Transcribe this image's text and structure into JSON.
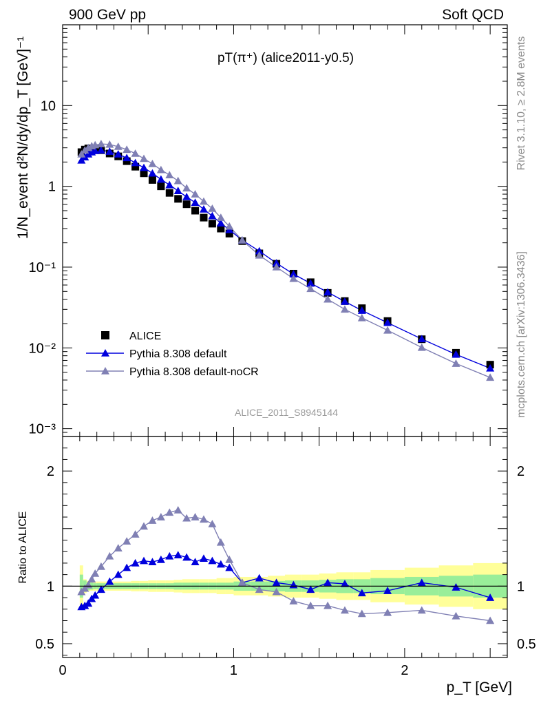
{
  "header": {
    "left": "900 GeV pp",
    "right": "Soft QCD",
    "side_top": "Rivet 3.1.10, ≥ 2.8M events",
    "side_bottom": "mcplots.cern.ch [arXiv:1306.3436]"
  },
  "chart_data": [
    {
      "type": "scatter",
      "title": "pT(π⁺) (alice2011-y0.5)",
      "watermark": "ALICE_2011_S8945144",
      "ylabel": "1/N_event d²N/dy/dp_T [GeV]⁻¹",
      "yscale": "log",
      "ylim": [
        0.0008,
        100
      ],
      "xlim": [
        0,
        2.6
      ],
      "grid": false,
      "legend": "lower-left",
      "yticks": [
        {
          "v": 0.001,
          "label": "10⁻³"
        },
        {
          "v": 0.01,
          "label": "10⁻²"
        },
        {
          "v": 0.1,
          "label": "10⁻¹"
        },
        {
          "v": 1,
          "label": "1"
        },
        {
          "v": 10,
          "label": "10"
        }
      ],
      "series": [
        {
          "name": "ALICE",
          "style": "square",
          "color": "#000000",
          "x": [
            0.11,
            0.13,
            0.15,
            0.17,
            0.19,
            0.225,
            0.275,
            0.325,
            0.375,
            0.425,
            0.475,
            0.525,
            0.575,
            0.625,
            0.675,
            0.725,
            0.775,
            0.825,
            0.875,
            0.925,
            0.975,
            1.05,
            1.15,
            1.25,
            1.35,
            1.45,
            1.55,
            1.65,
            1.75,
            1.9,
            2.1,
            2.3,
            2.5
          ],
          "y": [
            2.65,
            2.85,
            2.95,
            2.95,
            2.9,
            2.8,
            2.55,
            2.35,
            2.05,
            1.75,
            1.45,
            1.2,
            1.0,
            0.83,
            0.7,
            0.6,
            0.5,
            0.41,
            0.345,
            0.3,
            0.26,
            0.21,
            0.148,
            0.11,
            0.083,
            0.065,
            0.048,
            0.038,
            0.031,
            0.0215,
            0.0128,
            0.0087,
            0.0062
          ]
        },
        {
          "name": "Pythia 8.308 default",
          "style": "triangle-line",
          "color": "#0000dd",
          "x": [
            0.11,
            0.13,
            0.15,
            0.17,
            0.19,
            0.225,
            0.275,
            0.325,
            0.375,
            0.425,
            0.475,
            0.525,
            0.575,
            0.625,
            0.675,
            0.725,
            0.775,
            0.825,
            0.875,
            0.925,
            0.975,
            1.05,
            1.15,
            1.25,
            1.35,
            1.45,
            1.55,
            1.65,
            1.75,
            1.9,
            2.1,
            2.3,
            2.5
          ],
          "y": [
            2.1,
            2.3,
            2.5,
            2.65,
            2.75,
            2.8,
            2.7,
            2.5,
            2.25,
            1.95,
            1.7,
            1.45,
            1.22,
            1.04,
            0.88,
            0.74,
            0.63,
            0.52,
            0.43,
            0.35,
            0.29,
            0.215,
            0.158,
            0.112,
            0.082,
            0.063,
            0.049,
            0.0375,
            0.029,
            0.0205,
            0.0129,
            0.0083,
            0.0056
          ]
        },
        {
          "name": "Pythia 8.308 default-noCR",
          "style": "triangle-line",
          "color": "#8080b4",
          "x": [
            0.11,
            0.13,
            0.15,
            0.17,
            0.19,
            0.225,
            0.275,
            0.325,
            0.375,
            0.425,
            0.475,
            0.525,
            0.575,
            0.625,
            0.675,
            0.725,
            0.775,
            0.825,
            0.875,
            0.925,
            0.975,
            1.05,
            1.15,
            1.25,
            1.35,
            1.45,
            1.55,
            1.65,
            1.75,
            1.9,
            2.1,
            2.3,
            2.5
          ],
          "y": [
            2.5,
            2.8,
            3.0,
            3.15,
            3.25,
            3.35,
            3.3,
            3.1,
            2.85,
            2.55,
            2.2,
            1.9,
            1.6,
            1.38,
            1.17,
            0.95,
            0.8,
            0.65,
            0.53,
            0.41,
            0.32,
            0.215,
            0.14,
            0.1,
            0.072,
            0.054,
            0.04,
            0.03,
            0.0235,
            0.0165,
            0.0101,
            0.0064,
            0.0043
          ]
        }
      ]
    },
    {
      "type": "line",
      "ylabel": "Ratio to ALICE",
      "xlabel": "p_T [GeV]",
      "ylim": [
        0.38,
        2.3
      ],
      "xlim": [
        0,
        2.6
      ],
      "reference": 1,
      "yticks": [
        {
          "v": 0.5,
          "label": "0.5"
        },
        {
          "v": 1,
          "label": "1"
        },
        {
          "v": 2,
          "label": "2"
        }
      ],
      "xticks": [
        {
          "v": 0,
          "label": "0"
        },
        {
          "v": 1,
          "label": "1"
        },
        {
          "v": 2,
          "label": "2"
        }
      ],
      "uncertainty_bands": {
        "x_low": [
          0.1,
          0.12,
          0.14,
          0.16,
          0.18,
          0.2,
          0.25,
          0.3,
          0.35,
          0.4,
          0.45,
          0.5,
          0.55,
          0.6,
          0.65,
          0.7,
          0.75,
          0.8,
          0.85,
          0.9,
          0.95,
          1.0,
          1.1,
          1.2,
          1.3,
          1.4,
          1.5,
          1.6,
          1.7,
          1.8,
          2.0,
          2.2,
          2.4
        ],
        "x_high": [
          0.12,
          0.14,
          0.16,
          0.18,
          0.2,
          0.25,
          0.3,
          0.35,
          0.4,
          0.45,
          0.5,
          0.55,
          0.6,
          0.65,
          0.7,
          0.75,
          0.8,
          0.85,
          0.9,
          0.95,
          1.0,
          1.1,
          1.2,
          1.3,
          1.4,
          1.5,
          1.6,
          1.7,
          1.8,
          2.0,
          2.2,
          2.4,
          2.6
        ],
        "stat": [
          0.1,
          0.05,
          0.035,
          0.03,
          0.025,
          0.025,
          0.025,
          0.025,
          0.025,
          0.025,
          0.025,
          0.025,
          0.025,
          0.025,
          0.03,
          0.03,
          0.03,
          0.03,
          0.03,
          0.03,
          0.03,
          0.04,
          0.04,
          0.045,
          0.05,
          0.05,
          0.055,
          0.06,
          0.06,
          0.07,
          0.08,
          0.09,
          0.1
        ],
        "total": [
          0.18,
          0.06,
          0.045,
          0.04,
          0.04,
          0.04,
          0.04,
          0.04,
          0.04,
          0.045,
          0.045,
          0.05,
          0.05,
          0.05,
          0.055,
          0.06,
          0.06,
          0.06,
          0.06,
          0.07,
          0.07,
          0.08,
          0.08,
          0.09,
          0.1,
          0.1,
          0.11,
          0.12,
          0.12,
          0.14,
          0.16,
          0.18,
          0.2
        ],
        "stat_color": "#99ee99",
        "total_color": "#ffff99"
      },
      "series": [
        {
          "name": "Pythia 8.308 default",
          "color": "#0000dd",
          "x": [
            0.11,
            0.13,
            0.15,
            0.17,
            0.19,
            0.225,
            0.275,
            0.325,
            0.375,
            0.425,
            0.475,
            0.525,
            0.575,
            0.625,
            0.675,
            0.725,
            0.775,
            0.825,
            0.875,
            0.925,
            0.975,
            1.05,
            1.15,
            1.25,
            1.35,
            1.45,
            1.55,
            1.65,
            1.75,
            1.9,
            2.1,
            2.3,
            2.5
          ],
          "y": [
            0.82,
            0.83,
            0.85,
            0.89,
            0.92,
            0.97,
            1.04,
            1.1,
            1.16,
            1.2,
            1.22,
            1.21,
            1.23,
            1.26,
            1.27,
            1.25,
            1.21,
            1.24,
            1.22,
            1.19,
            1.16,
            1.03,
            1.07,
            1.03,
            1.01,
            0.97,
            1.03,
            1.02,
            0.94,
            0.96,
            1.03,
            0.99,
            0.9
          ]
        },
        {
          "name": "Pythia 8.308 default-noCR",
          "color": "#8080b4",
          "x": [
            0.11,
            0.13,
            0.15,
            0.17,
            0.19,
            0.225,
            0.275,
            0.325,
            0.375,
            0.425,
            0.475,
            0.525,
            0.575,
            0.625,
            0.675,
            0.725,
            0.775,
            0.825,
            0.875,
            0.925,
            0.975,
            1.05,
            1.15,
            1.25,
            1.35,
            1.45,
            1.55,
            1.65,
            1.75,
            1.9,
            2.1,
            2.3,
            2.5
          ],
          "y": [
            0.95,
            0.98,
            1.01,
            1.06,
            1.11,
            1.17,
            1.26,
            1.33,
            1.39,
            1.45,
            1.52,
            1.57,
            1.6,
            1.64,
            1.66,
            1.59,
            1.6,
            1.58,
            1.54,
            1.38,
            1.23,
            1.03,
            0.97,
            0.95,
            0.87,
            0.83,
            0.83,
            0.79,
            0.76,
            0.77,
            0.79,
            0.74,
            0.7
          ]
        }
      ]
    }
  ]
}
